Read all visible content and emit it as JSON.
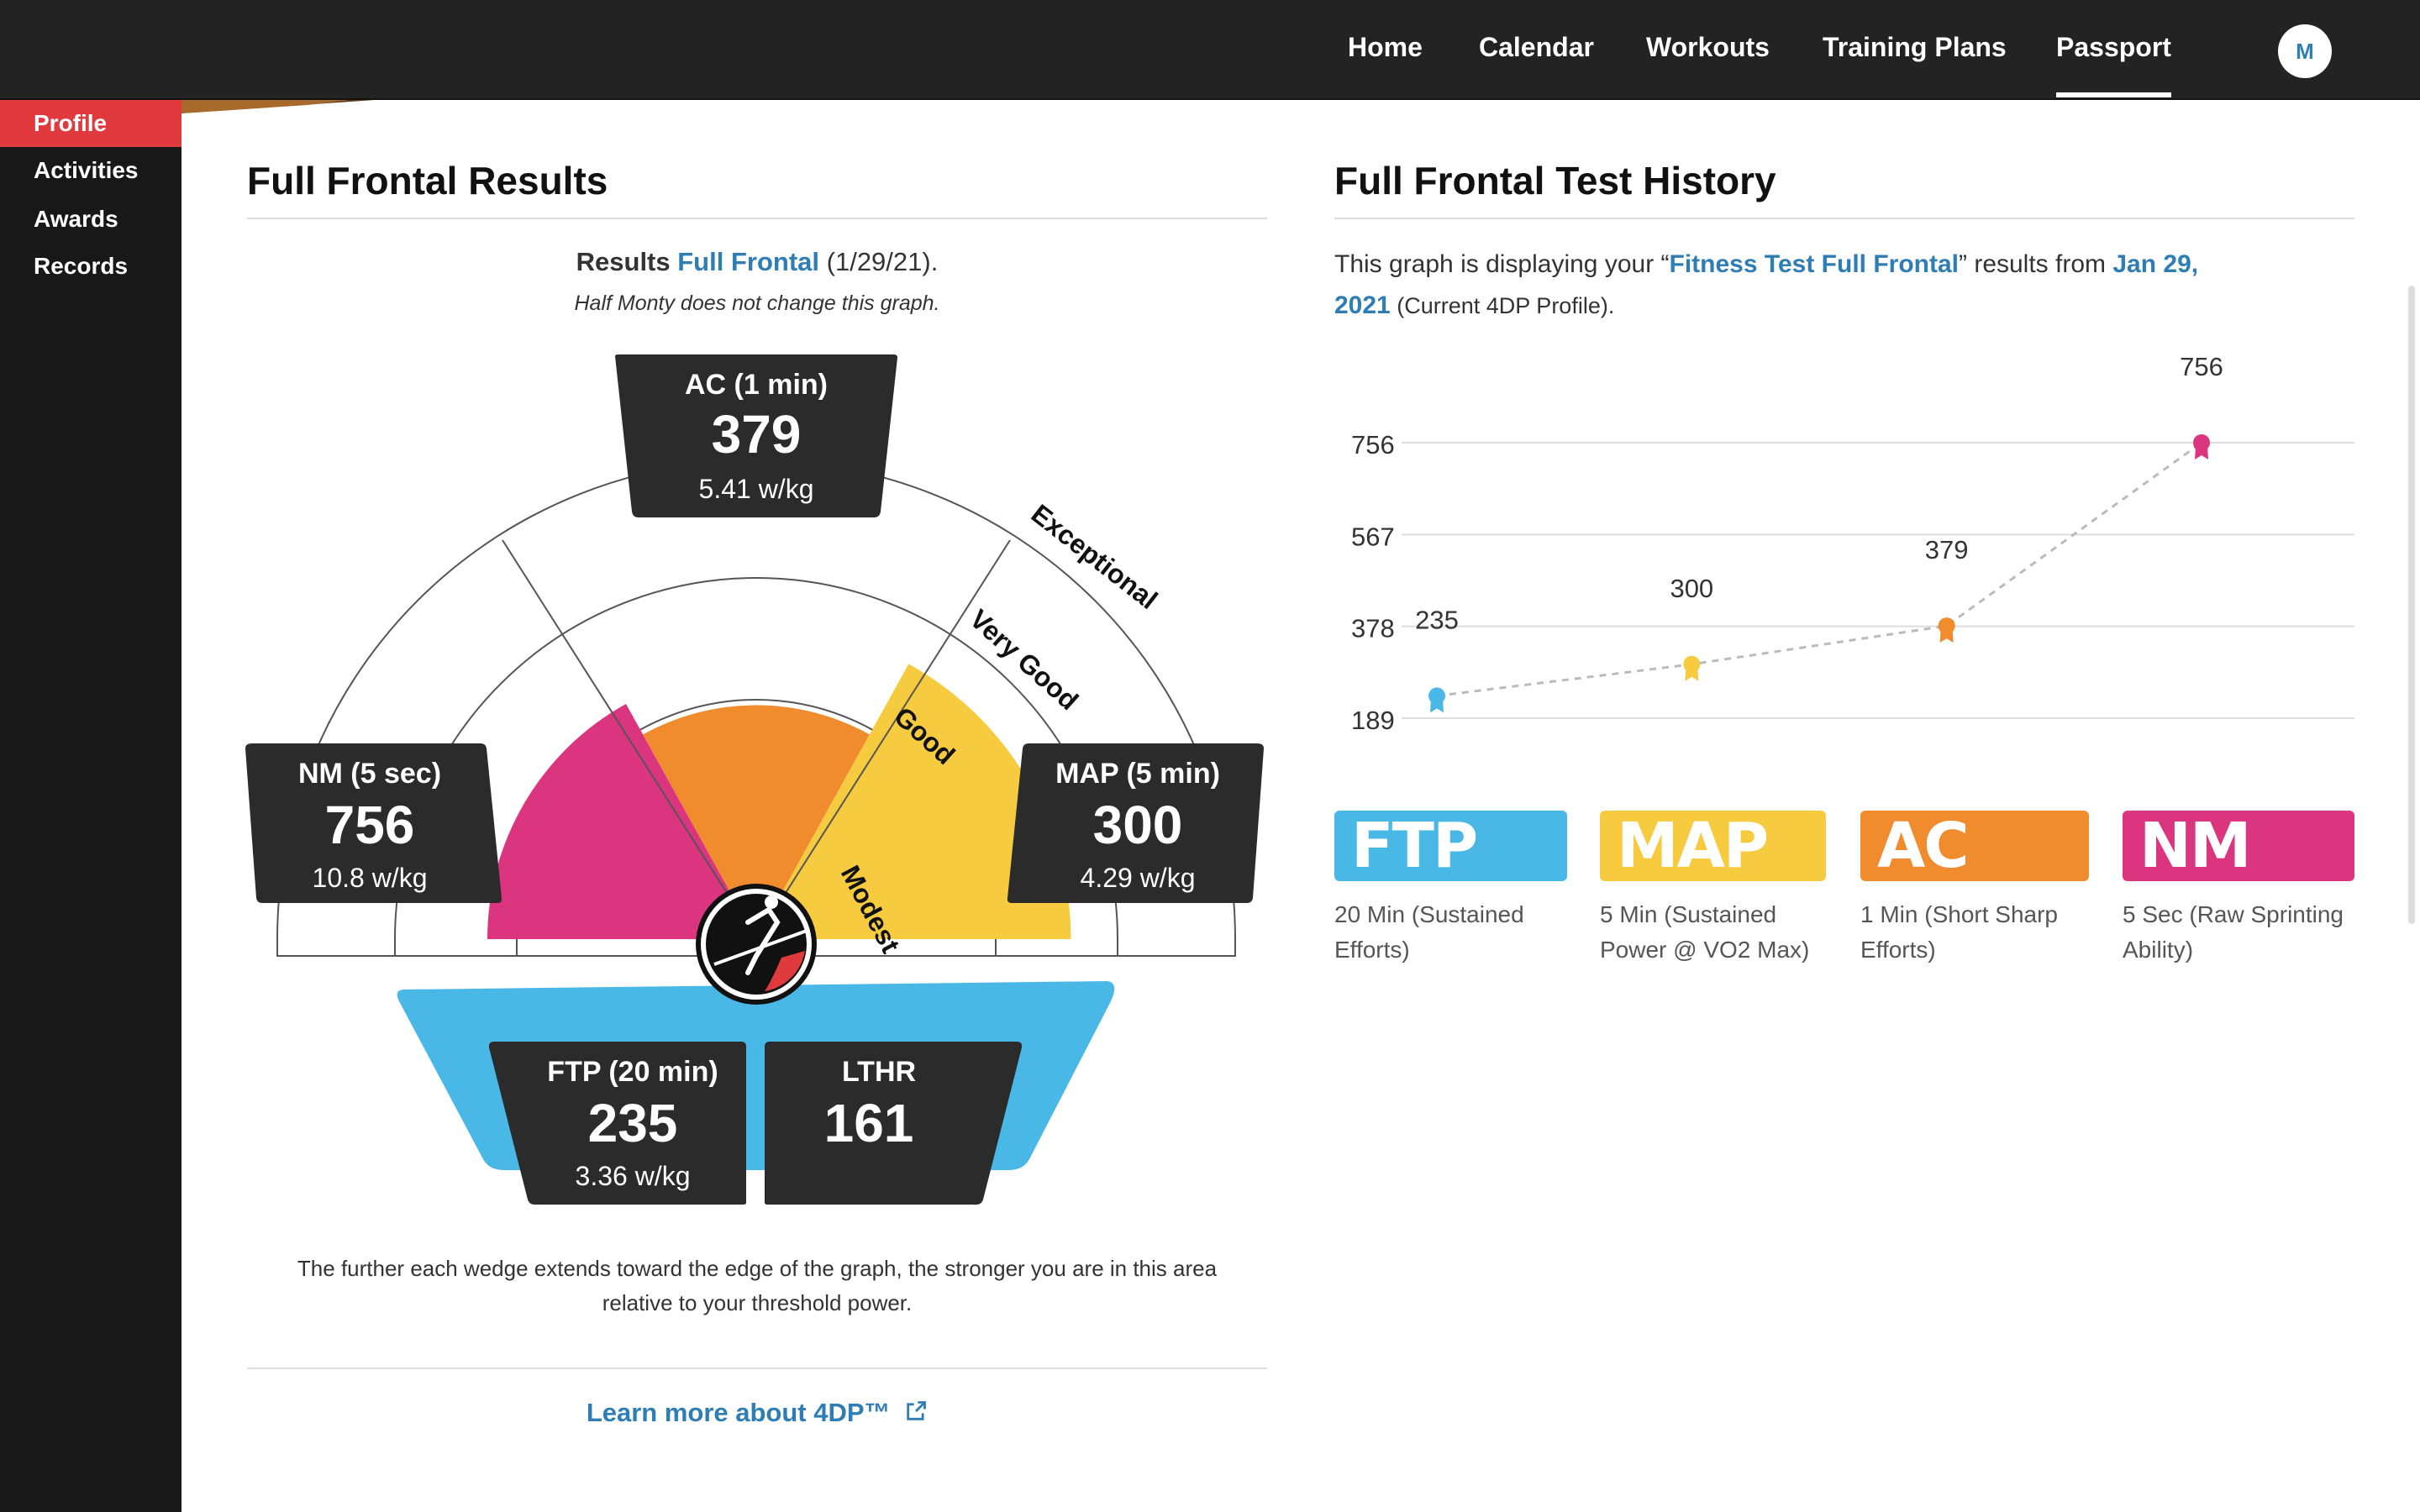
{
  "nav": {
    "items": [
      {
        "label": "Home",
        "active": false
      },
      {
        "label": "Calendar",
        "active": false
      },
      {
        "label": "Workouts",
        "active": false
      },
      {
        "label": "Training Plans",
        "active": false
      },
      {
        "label": "Passport",
        "active": true
      }
    ],
    "avatar_initial": "M"
  },
  "sidebar": {
    "items": [
      {
        "label": "Profile",
        "active": true
      },
      {
        "label": "Activities",
        "active": false
      },
      {
        "label": "Awards",
        "active": false
      },
      {
        "label": "Records",
        "active": false
      }
    ]
  },
  "results": {
    "title": "Full Frontal Results",
    "subtitle_prefix": "Results",
    "subtitle_link": "Full Frontal",
    "subtitle_date": "(1/29/21).",
    "note": "Half Monty does not change this graph.",
    "ac": {
      "label": "AC (1 min)",
      "value": "379",
      "wkg": "5.41 w/kg"
    },
    "nm": {
      "label": "NM (5 sec)",
      "value": "756",
      "wkg": "10.8 w/kg"
    },
    "map": {
      "label": "MAP (5 min)",
      "value": "300",
      "wkg": "4.29 w/kg"
    },
    "ftp": {
      "label": "FTP (20 min)",
      "value": "235",
      "wkg": "3.36 w/kg"
    },
    "lthr": {
      "label": "LTHR",
      "value": "161"
    },
    "zones": [
      "Modest",
      "Good",
      "Very Good",
      "Exceptional"
    ],
    "footnote": "The further each wedge extends toward the edge of the graph, the stronger you are in this area relative to your threshold power.",
    "learn_more": "Learn more about 4DP™"
  },
  "history": {
    "title": "Full Frontal Test History",
    "desc_prefix": "This graph is displaying your “",
    "desc_link1": "Fitness Test Full Frontal",
    "desc_mid": "” results from ",
    "desc_link2": "Jan 29, 2021",
    "desc_suffix": " (Current 4DP Profile)."
  },
  "chart_data": {
    "type": "scatter",
    "y_ticks": [
      189,
      378,
      567,
      756
    ],
    "ylim": [
      189,
      756
    ],
    "grid": true,
    "points": [
      {
        "name": "FTP",
        "value": 235,
        "color": "#4ab8e6"
      },
      {
        "name": "MAP",
        "value": 300,
        "color": "#f7cb40"
      },
      {
        "name": "AC",
        "value": 379,
        "color": "#f08c2e"
      },
      {
        "name": "NM",
        "value": 756,
        "color": "#dc3580"
      }
    ]
  },
  "legend": [
    {
      "label": "FTP",
      "desc": "20 Min (Sustained Efforts)",
      "color": "#4ab8e6"
    },
    {
      "label": "MAP",
      "desc": "5 Min (Sustained Power @ VO2 Max)",
      "color": "#f7cb40"
    },
    {
      "label": "AC",
      "desc": "1 Min (Short Sharp Efforts)",
      "color": "#f08c2e"
    },
    {
      "label": "NM",
      "desc": "5 Sec (Raw Sprinting Ability)",
      "color": "#dc3580"
    }
  ],
  "colors": {
    "ftp": "#4ab8e6",
    "map": "#f7cb40",
    "ac": "#f08c2e",
    "nm": "#dc3580",
    "link": "#2e7db5",
    "accent": "#e03a3e"
  }
}
